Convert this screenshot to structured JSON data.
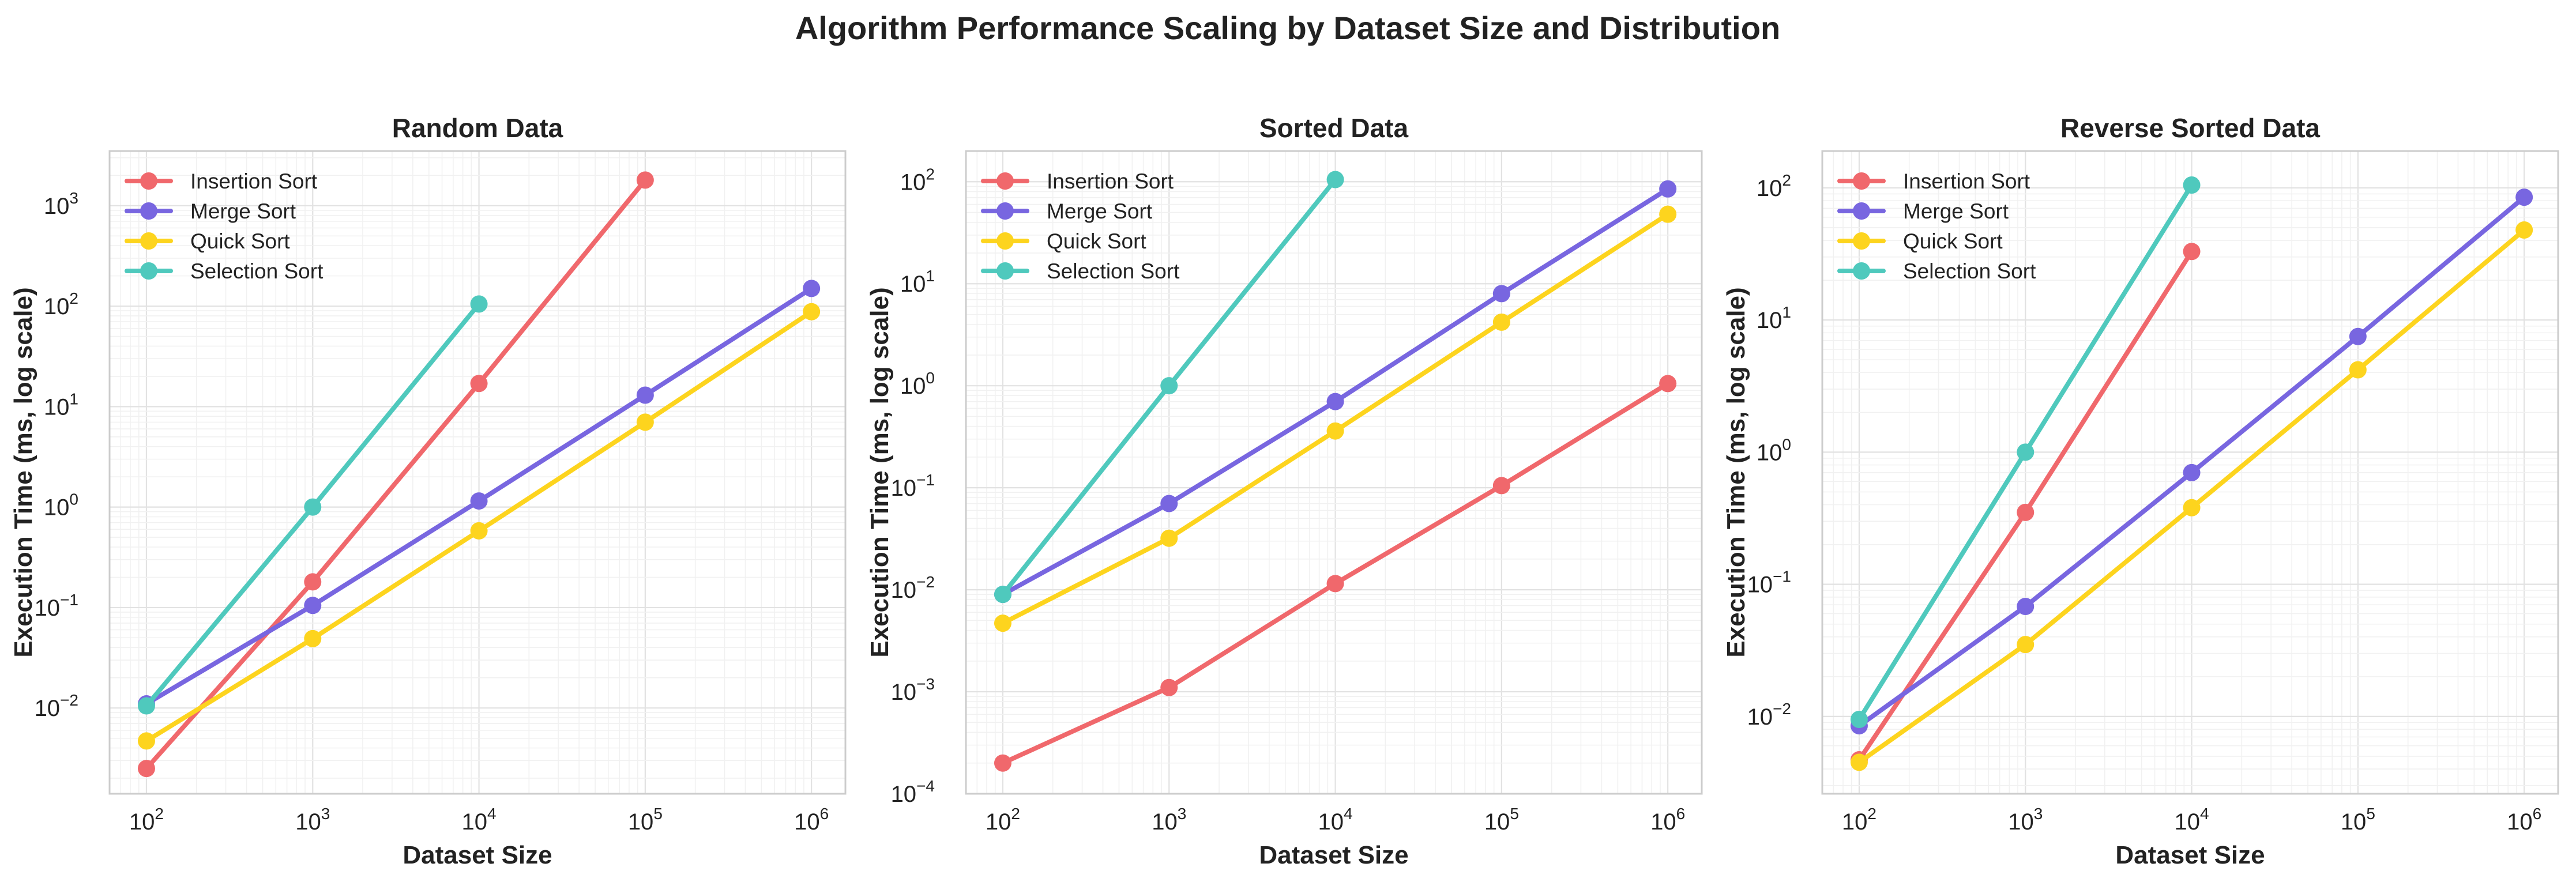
{
  "figure": {
    "title": "Algorithm Performance Scaling by Dataset Size and Distribution"
  },
  "chart_data": [
    {
      "type": "line",
      "title": "Random Data",
      "xlabel": "Dataset Size",
      "ylabel": "Execution Time (ms, log scale)",
      "xscale": "log",
      "yscale": "log",
      "xlim": [
        60,
        1600000
      ],
      "ylim": [
        0.0014,
        3500
      ],
      "xticks": [
        {
          "v": 100,
          "e": "2"
        },
        {
          "v": 1000,
          "e": "3"
        },
        {
          "v": 10000,
          "e": "4"
        },
        {
          "v": 100000,
          "e": "5"
        },
        {
          "v": 1000000,
          "e": "6"
        }
      ],
      "yticks": [
        {
          "v": 0.01,
          "e": "−2"
        },
        {
          "v": 0.1,
          "e": "−1"
        },
        {
          "v": 1,
          "e": "0"
        },
        {
          "v": 10,
          "e": "1"
        },
        {
          "v": 100,
          "e": "2"
        },
        {
          "v": 1000,
          "e": "3"
        }
      ],
      "grid": true,
      "legend": "top-left",
      "series": [
        {
          "name": "Insertion Sort",
          "color": "#f0686c",
          "x": [
            100,
            1000,
            10000,
            100000
          ],
          "y": [
            0.0025,
            0.18,
            17,
            1800
          ]
        },
        {
          "name": "Merge Sort",
          "color": "#7866e0",
          "x": [
            100,
            1000,
            10000,
            100000,
            1000000
          ],
          "y": [
            0.011,
            0.105,
            1.15,
            13,
            150
          ]
        },
        {
          "name": "Quick Sort",
          "color": "#fdd41e",
          "x": [
            100,
            1000,
            10000,
            100000,
            1000000
          ],
          "y": [
            0.0047,
            0.049,
            0.58,
            7,
            88
          ]
        },
        {
          "name": "Selection Sort",
          "color": "#4fc9bd",
          "x": [
            100,
            1000,
            10000
          ],
          "y": [
            0.0105,
            1.0,
            105
          ]
        }
      ]
    },
    {
      "type": "line",
      "title": "Sorted Data",
      "xlabel": "Dataset Size",
      "ylabel": "Execution Time (ms, log scale)",
      "xscale": "log",
      "yscale": "log",
      "xlim": [
        60,
        1600000
      ],
      "ylim": [
        0.0001,
        200
      ],
      "xticks": [
        {
          "v": 100,
          "e": "2"
        },
        {
          "v": 1000,
          "e": "3"
        },
        {
          "v": 10000,
          "e": "4"
        },
        {
          "v": 100000,
          "e": "5"
        },
        {
          "v": 1000000,
          "e": "6"
        }
      ],
      "yticks": [
        {
          "v": 0.0001,
          "e": "−4"
        },
        {
          "v": 0.001,
          "e": "−3"
        },
        {
          "v": 0.01,
          "e": "−2"
        },
        {
          "v": 0.1,
          "e": "−1"
        },
        {
          "v": 1,
          "e": "0"
        },
        {
          "v": 10,
          "e": "1"
        },
        {
          "v": 100,
          "e": "2"
        }
      ],
      "grid": true,
      "legend": "top-left",
      "series": [
        {
          "name": "Insertion Sort",
          "color": "#f0686c",
          "x": [
            100,
            1000,
            10000,
            100000,
            1000000
          ],
          "y": [
            0.0002,
            0.0011,
            0.0115,
            0.105,
            1.05
          ]
        },
        {
          "name": "Merge Sort",
          "color": "#7866e0",
          "x": [
            100,
            1000,
            10000,
            100000,
            1000000
          ],
          "y": [
            0.009,
            0.07,
            0.7,
            8,
            85
          ]
        },
        {
          "name": "Quick Sort",
          "color": "#fdd41e",
          "x": [
            100,
            1000,
            10000,
            100000,
            1000000
          ],
          "y": [
            0.0047,
            0.032,
            0.36,
            4.2,
            48
          ]
        },
        {
          "name": "Selection Sort",
          "color": "#4fc9bd",
          "x": [
            100,
            1000,
            10000
          ],
          "y": [
            0.009,
            1.0,
            105
          ]
        }
      ]
    },
    {
      "type": "line",
      "title": "Reverse Sorted Data",
      "xlabel": "Dataset Size",
      "ylabel": "Execution Time (ms, log scale)",
      "xscale": "log",
      "yscale": "log",
      "xlim": [
        60,
        1600000
      ],
      "ylim": [
        0.0026,
        190
      ],
      "xticks": [
        {
          "v": 100,
          "e": "2"
        },
        {
          "v": 1000,
          "e": "3"
        },
        {
          "v": 10000,
          "e": "4"
        },
        {
          "v": 100000,
          "e": "5"
        },
        {
          "v": 1000000,
          "e": "6"
        }
      ],
      "yticks": [
        {
          "v": 0.01,
          "e": "−2"
        },
        {
          "v": 0.1,
          "e": "−1"
        },
        {
          "v": 1,
          "e": "0"
        },
        {
          "v": 10,
          "e": "1"
        },
        {
          "v": 100,
          "e": "2"
        }
      ],
      "grid": true,
      "legend": "top-left",
      "series": [
        {
          "name": "Insertion Sort",
          "color": "#f0686c",
          "x": [
            100,
            1000,
            10000
          ],
          "y": [
            0.0047,
            0.35,
            33
          ]
        },
        {
          "name": "Merge Sort",
          "color": "#7866e0",
          "x": [
            100,
            1000,
            10000,
            100000,
            1000000
          ],
          "y": [
            0.0085,
            0.068,
            0.7,
            7.5,
            85
          ]
        },
        {
          "name": "Quick Sort",
          "color": "#fdd41e",
          "x": [
            100,
            1000,
            10000,
            100000,
            1000000
          ],
          "y": [
            0.0045,
            0.035,
            0.38,
            4.2,
            48
          ]
        },
        {
          "name": "Selection Sort",
          "color": "#4fc9bd",
          "x": [
            100,
            1000,
            10000
          ],
          "y": [
            0.0095,
            1.0,
            105
          ]
        }
      ]
    }
  ]
}
